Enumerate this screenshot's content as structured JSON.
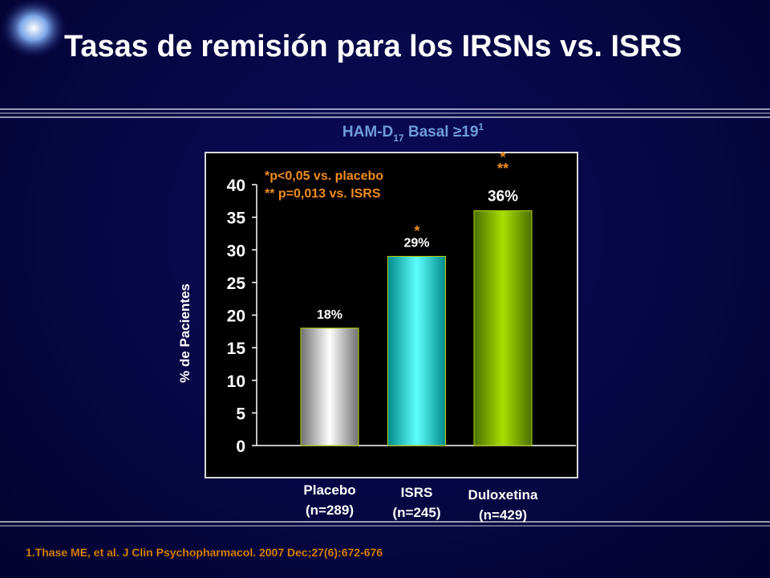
{
  "chart_data": {
    "type": "bar",
    "title": "Tasas de remisión para los IRSNs vs. ISRS",
    "subtitle_parts": [
      "HAM-D",
      "17",
      " Basal ≥19",
      "1"
    ],
    "y_label": "% de Pacientes",
    "categories": [
      "Placebo (n=289)",
      "ISRS (n=245)",
      "Duloxetina (n=429)"
    ],
    "values": [
      18,
      29,
      36
    ],
    "value_labels": [
      "18%",
      "29%",
      "36%"
    ],
    "colors": [
      "#c8c8c8",
      "#10d8d8",
      "#8cc000"
    ],
    "significance_marks": [
      "*",
      "*",
      "**"
    ],
    "notes": [
      "*p<0,05 vs. placebo",
      "** p=0,013 vs. ISRS"
    ],
    "ylim": [
      0,
      40
    ],
    "yticks": [
      0,
      5,
      10,
      15,
      20,
      25,
      30,
      35,
      40
    ],
    "footnote": "1.Thase ME, et al. J Clin Psychopharmacol. 2007 Dec;27(6):672-676"
  }
}
